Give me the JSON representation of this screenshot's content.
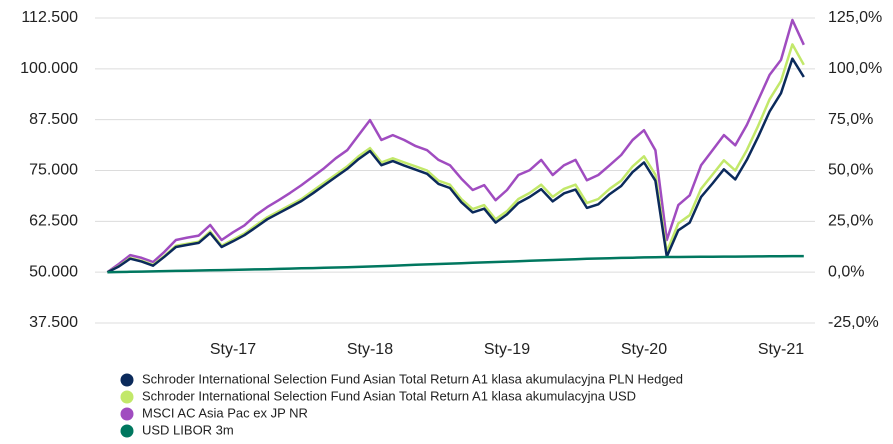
{
  "chart_data": {
    "type": "line",
    "categories": [
      null,
      null,
      null,
      null,
      null,
      null,
      null,
      null,
      null,
      null,
      null,
      "Sty-17",
      null,
      null,
      null,
      null,
      null,
      null,
      null,
      null,
      null,
      null,
      null,
      "Sty-18",
      null,
      null,
      null,
      null,
      null,
      null,
      null,
      null,
      null,
      null,
      null,
      "Sty-19",
      null,
      null,
      null,
      null,
      null,
      null,
      null,
      null,
      null,
      null,
      null,
      "Sty-20",
      null,
      null,
      null,
      null,
      null,
      null,
      null,
      null,
      null,
      null,
      null,
      "Sty-21",
      null,
      null
    ],
    "series": [
      {
        "name": "MSCI AC Asia Pac ex JP NR",
        "color": "#a04cc0",
        "values": [
          50000,
          52000,
          54200,
          53500,
          52500,
          55000,
          57900,
          58500,
          59000,
          61600,
          57900,
          59800,
          61500,
          64000,
          66000,
          67700,
          69500,
          71400,
          73500,
          75600,
          78000,
          80000,
          83700,
          87400,
          82500,
          83700,
          82500,
          81000,
          80000,
          77600,
          76300,
          73000,
          70200,
          71400,
          67700,
          70200,
          73900,
          75100,
          77600,
          73900,
          76300,
          77600,
          72600,
          73900,
          76300,
          78800,
          82500,
          84900,
          80000,
          57900,
          66500,
          68900,
          76300,
          80000,
          83700,
          81200,
          86200,
          92300,
          98500,
          102200,
          112000,
          105900
        ]
      },
      {
        "name": "Schroder International Selection Fund Asian Total Return A1 klasa akumulacyjna USD",
        "color": "#c2e86a",
        "values": [
          50000,
          51500,
          53500,
          52800,
          51800,
          54000,
          56500,
          57000,
          57500,
          60000,
          56500,
          58000,
          59500,
          61500,
          63500,
          65000,
          66500,
          68000,
          70000,
          72000,
          74000,
          76000,
          78500,
          80500,
          77000,
          78000,
          77000,
          76000,
          75000,
          72500,
          71500,
          68000,
          65500,
          66500,
          63000,
          65000,
          68000,
          69500,
          71500,
          68500,
          70500,
          71500,
          67000,
          68000,
          70500,
          72500,
          76000,
          78500,
          74000,
          55000,
          62000,
          64000,
          70500,
          74000,
          77500,
          75000,
          80000,
          86000,
          92500,
          97000,
          106000,
          101000
        ]
      },
      {
        "name": "Schroder International Selection Fund Asian Total Return A1 klasa akumulacyjna PLN Hedged",
        "color": "#0b2a5b",
        "values": [
          50000,
          51400,
          53300,
          52600,
          51600,
          53800,
          56200,
          56700,
          57200,
          59600,
          56200,
          57600,
          59100,
          61000,
          63000,
          64500,
          66000,
          67500,
          69400,
          71400,
          73400,
          75400,
          77800,
          79800,
          76300,
          77300,
          76200,
          75200,
          74200,
          71700,
          70700,
          67200,
          64700,
          65600,
          62200,
          64200,
          67000,
          68500,
          70400,
          67400,
          69400,
          70300,
          65800,
          66700,
          69200,
          71200,
          74600,
          77000,
          72500,
          53800,
          60300,
          62200,
          68500,
          71800,
          75300,
          72800,
          77600,
          83300,
          89500,
          94000,
          102500,
          98000
        ]
      },
      {
        "name": "USD LIBOR 3m",
        "color": "#00775f",
        "values": [
          50000,
          50050,
          50100,
          50150,
          50200,
          50250,
          50300,
          50350,
          50400,
          50450,
          50500,
          50560,
          50620,
          50680,
          50740,
          50800,
          50870,
          50940,
          51010,
          51080,
          51150,
          51220,
          51300,
          51400,
          51500,
          51600,
          51700,
          51800,
          51900,
          52000,
          52100,
          52200,
          52300,
          52400,
          52500,
          52600,
          52700,
          52800,
          52900,
          53000,
          53100,
          53200,
          53280,
          53360,
          53440,
          53500,
          53560,
          53620,
          53680,
          53720,
          53740,
          53760,
          53780,
          53800,
          53820,
          53840,
          53860,
          53880,
          53900,
          53920,
          53940,
          53950
        ]
      }
    ],
    "legend_order": [
      2,
      1,
      0,
      3
    ],
    "ylim": [
      37500,
      112500
    ],
    "yticks": [
      {
        "value": 37500,
        "label": "37.500"
      },
      {
        "value": 50000,
        "label": "50.000"
      },
      {
        "value": 62500,
        "label": "62.500"
      },
      {
        "value": 75000,
        "label": "75.000"
      },
      {
        "value": 87500,
        "label": "87.500"
      },
      {
        "value": 100000,
        "label": "100.000"
      },
      {
        "value": 112500,
        "label": "112.500"
      }
    ],
    "y2lim": [
      -25,
      125
    ],
    "y2ticks": [
      {
        "value": -25,
        "label": "-25,0%"
      },
      {
        "value": 0,
        "label": "0,0%"
      },
      {
        "value": 25,
        "label": "25,0%"
      },
      {
        "value": 50,
        "label": "50,0%"
      },
      {
        "value": 75,
        "label": "75,0%"
      },
      {
        "value": 100,
        "label": "100,0%"
      },
      {
        "value": 125,
        "label": "125,0%"
      }
    ],
    "grid": true
  }
}
